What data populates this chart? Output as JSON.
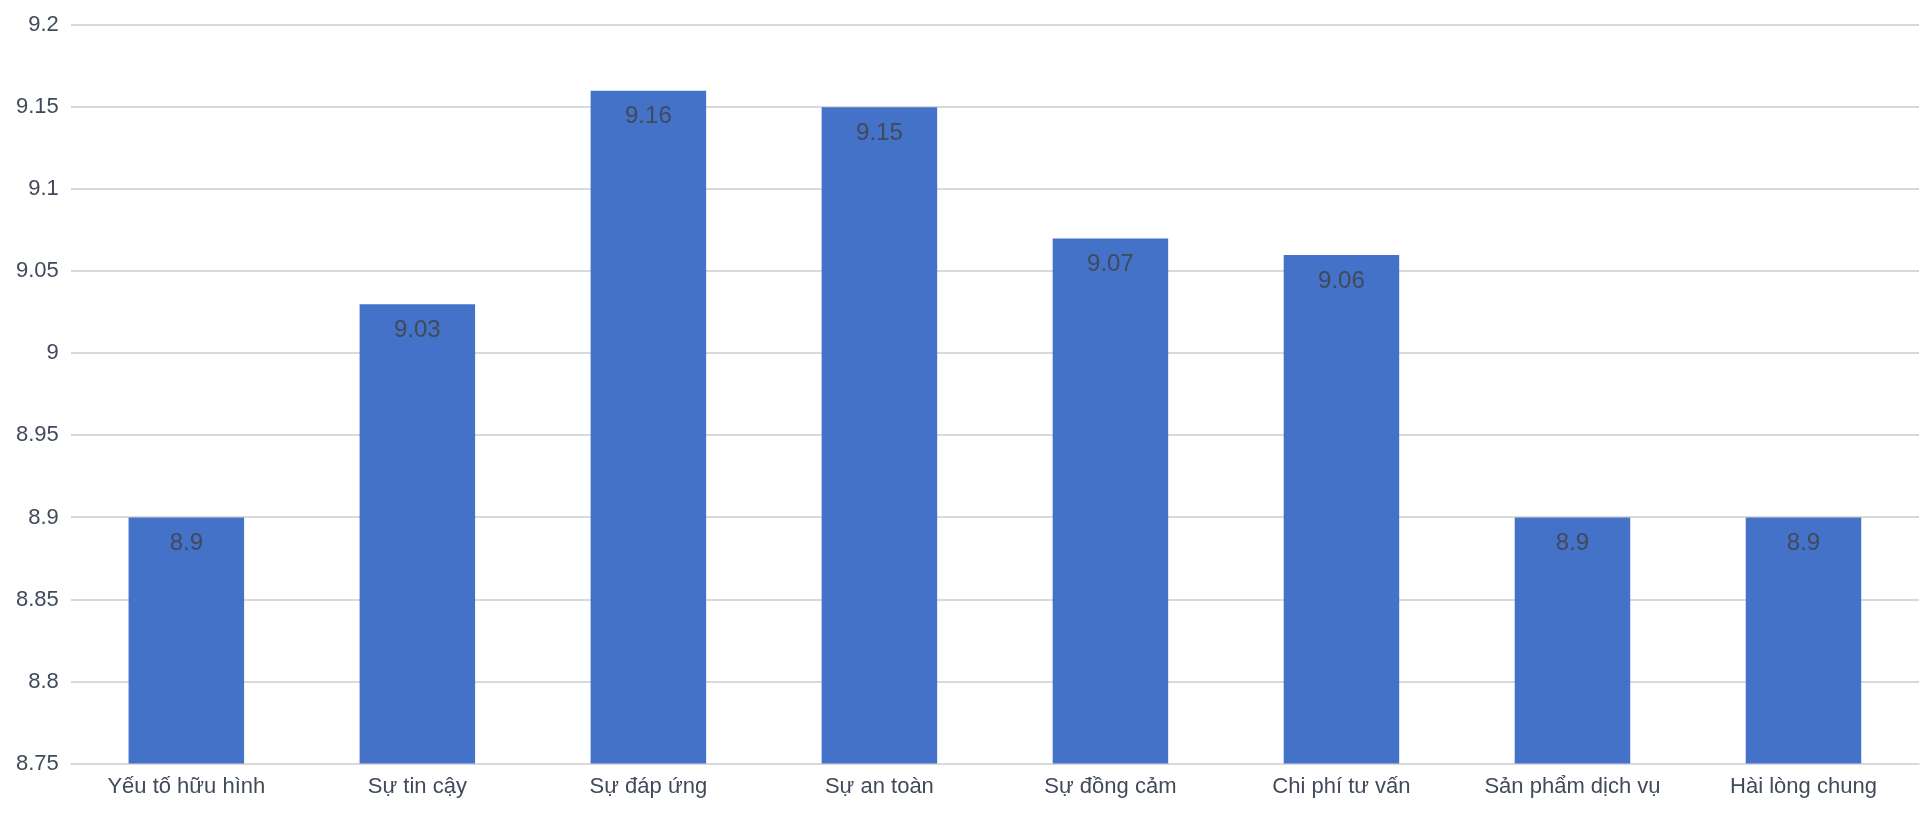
{
  "chart_data": {
    "type": "bar",
    "categories": [
      "Yếu tố hữu hình",
      "Sự tin cậy",
      "Sự đáp ứng",
      "Sự an toàn",
      "Sự đồng cảm",
      "Chi phí tư vấn",
      "Sản phẩm dịch vụ",
      "Hài lòng chung"
    ],
    "values": [
      8.9,
      9.03,
      9.16,
      9.15,
      9.07,
      9.06,
      8.9,
      8.9
    ],
    "color": "#4472c8",
    "ylim": [
      8.75,
      9.2
    ],
    "yticks": [
      8.75,
      8.8,
      8.85,
      8.9,
      8.95,
      9,
      9.05,
      9.1,
      9.15,
      9.2
    ],
    "grid": "y",
    "data_labels": true
  }
}
